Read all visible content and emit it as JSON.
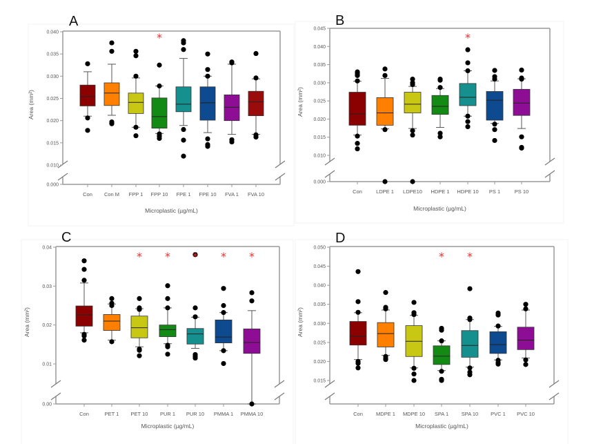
{
  "chart_data": [
    {
      "type": "box",
      "panel_label": "A",
      "xlabel": "Microplastic (µg/mL)",
      "ylabel": "Area (mm²)",
      "ylim": [
        0.0,
        0.04
      ],
      "axis_break": [
        0.0,
        0.01
      ],
      "yticks": [
        "0.000",
        "0.010",
        "0.015",
        "0.020",
        "0.025",
        "0.030",
        "0.035",
        "0.040"
      ],
      "categories": [
        "Con",
        "Con M",
        "FPP 1",
        "FPP 10",
        "FPE 1",
        "FPE 10",
        "FVA 1",
        "FVA 10"
      ],
      "colors": [
        "#8b0000",
        "#ff8000",
        "#c8c814",
        "#138a13",
        "#16908f",
        "#0d4a8f",
        "#8d0e94",
        "#9a0c0c"
      ],
      "boxes": [
        {
          "whisker_low": 0.021,
          "q1": 0.0233,
          "median": 0.0254,
          "q3": 0.028,
          "whisker_high": 0.031,
          "outliers": [
            0.0328,
            0.0178,
            0.0206
          ]
        },
        {
          "whisker_low": 0.0212,
          "q1": 0.0234,
          "median": 0.0262,
          "q3": 0.0285,
          "whisker_high": 0.0327,
          "outliers": [
            0.0375,
            0.0356,
            0.0197,
            0.0193
          ]
        },
        {
          "whisker_low": 0.0185,
          "q1": 0.0216,
          "median": 0.0241,
          "q3": 0.0262,
          "whisker_high": 0.0296,
          "outliers": [
            0.0356,
            0.0346,
            0.03,
            0.0185,
            0.0166
          ]
        },
        {
          "whisker_low": 0.0171,
          "q1": 0.0183,
          "median": 0.0209,
          "q3": 0.0251,
          "whisker_high": 0.0278,
          "outliers": [
            0.0325,
            0.0278,
            0.017,
            0.0165,
            0.016
          ]
        },
        {
          "whisker_low": 0.0189,
          "q1": 0.022,
          "median": 0.0237,
          "q3": 0.0276,
          "whisker_high": 0.034,
          "outliers": [
            0.038,
            0.0375,
            0.036,
            0.018,
            0.0156,
            0.012
          ]
        },
        {
          "whisker_low": 0.0173,
          "q1": 0.0201,
          "median": 0.024,
          "q3": 0.0276,
          "whisker_high": 0.03,
          "outliers": [
            0.035,
            0.0315,
            0.03,
            0.0159,
            0.0146,
            0.0142
          ]
        },
        {
          "whisker_low": 0.0169,
          "q1": 0.02,
          "median": 0.023,
          "q3": 0.0258,
          "whisker_high": 0.0327,
          "outliers": [
            0.0332,
            0.033,
            0.0157,
            0.0152
          ]
        },
        {
          "whisker_low": 0.0169,
          "q1": 0.0211,
          "median": 0.0242,
          "q3": 0.0266,
          "whisker_high": 0.0294,
          "outliers": [
            0.0351,
            0.0296,
            0.0168,
            0.0163
          ]
        }
      ],
      "significant": [
        "FPP 10"
      ]
    },
    {
      "type": "box",
      "panel_label": "B",
      "xlabel": "Microplastic (µg/mL)",
      "ylabel": "Area (mm²)",
      "ylim": [
        0.0,
        0.045
      ],
      "axis_break": [
        0.0,
        0.01
      ],
      "yticks": [
        "0.000",
        "0.010",
        "0.015",
        "0.020",
        "0.025",
        "0.030",
        "0.035",
        "0.040",
        "0.045"
      ],
      "categories": [
        "Con",
        "LDPE 1",
        "LDPE10",
        "HDPE 1",
        "HDPE 10",
        "PS 1",
        "PS 10"
      ],
      "colors": [
        "#8b0000",
        "#ff8000",
        "#c8c814",
        "#138a13",
        "#16908f",
        "#0d4a8f",
        "#8d0e94"
      ],
      "boxes": [
        {
          "whisker_low": 0.0156,
          "q1": 0.0183,
          "median": 0.0214,
          "q3": 0.0274,
          "whisker_high": 0.0304,
          "outliers": [
            0.033,
            0.0325,
            0.032,
            0.0305,
            0.0153,
            0.0133,
            0.0118
          ]
        },
        {
          "whisker_low": 0.0173,
          "q1": 0.0183,
          "median": 0.0217,
          "q3": 0.0259,
          "whisker_high": 0.0312,
          "outliers": [
            0.0338,
            0.032,
            0.0171,
            0.0091
          ]
        },
        {
          "whisker_low": 0.0174,
          "q1": 0.0217,
          "median": 0.0241,
          "q3": 0.0274,
          "whisker_high": 0.029,
          "outliers": [
            0.031,
            0.03,
            0.0295,
            0.0168,
            0.0156,
            0.0085
          ]
        },
        {
          "whisker_low": 0.0177,
          "q1": 0.0213,
          "median": 0.0235,
          "q3": 0.0265,
          "whisker_high": 0.0284,
          "outliers": [
            0.031,
            0.0307,
            0.0287,
            0.0161,
            0.0151
          ]
        },
        {
          "whisker_low": 0.0208,
          "q1": 0.0237,
          "median": 0.026,
          "q3": 0.0298,
          "whisker_high": 0.0333,
          "outliers": [
            0.0391,
            0.0355,
            0.0333,
            0.0208,
            0.0193,
            0.0179
          ]
        },
        {
          "whisker_low": 0.0188,
          "q1": 0.0197,
          "median": 0.0252,
          "q3": 0.0276,
          "whisker_high": 0.0305,
          "outliers": [
            0.0334,
            0.0317,
            0.031,
            0.0186,
            0.0171,
            0.0141
          ]
        },
        {
          "whisker_low": 0.0174,
          "q1": 0.021,
          "median": 0.0244,
          "q3": 0.0282,
          "whisker_high": 0.0311,
          "outliers": [
            0.0335,
            0.0313,
            0.031,
            0.0151,
            0.0122,
            0.012
          ]
        }
      ],
      "significant": [
        "HDPE 10"
      ]
    },
    {
      "type": "box",
      "panel_label": "C",
      "xlabel": "Microplastic (µg/mL)",
      "ylabel": "Area (mm²)",
      "ylim": [
        0.0,
        0.04
      ],
      "axis_break": [
        0.0,
        0.005
      ],
      "yticks": [
        "0.00",
        "0.01",
        "0.02",
        "0.03",
        "0.04"
      ],
      "categories": [
        "Con",
        "PET 1",
        "PET 10",
        "PUR 1",
        "PUR 10",
        "PMMA 1",
        "PMMA 10"
      ],
      "colors": [
        "#8b0000",
        "#ff8000",
        "#c8c814",
        "#138a13",
        "#16908f",
        "#0d4a8f",
        "#8d0e94"
      ],
      "boxes": [
        {
          "whisker_low": 0.018,
          "q1": 0.0197,
          "median": 0.0226,
          "q3": 0.0249,
          "whisker_high": 0.0308,
          "outliers": [
            0.0365,
            0.0343,
            0.0315,
            0.0176,
            0.0172,
            0.0161
          ]
        },
        {
          "whisker_low": 0.0161,
          "q1": 0.0186,
          "median": 0.021,
          "q3": 0.0227,
          "whisker_high": 0.0254,
          "outliers": [
            0.0268,
            0.0256,
            0.025,
            0.0157
          ]
        },
        {
          "whisker_low": 0.0144,
          "q1": 0.0167,
          "median": 0.0193,
          "q3": 0.0223,
          "whisker_high": 0.0242,
          "outliers": [
            0.0268,
            0.0244,
            0.024,
            0.0138,
            0.0135,
            0.0121
          ]
        },
        {
          "whisker_low": 0.0152,
          "q1": 0.017,
          "median": 0.0188,
          "q3": 0.02,
          "whisker_high": 0.0244,
          "outliers": [
            0.0301,
            0.0268,
            0.0244,
            0.0148,
            0.0144,
            0.0125
          ]
        },
        {
          "whisker_low": 0.014,
          "q1": 0.0151,
          "median": 0.0177,
          "q3": 0.0191,
          "whisker_high": 0.022,
          "outliers": [
            0.0381,
            0.0244,
            0.0221,
            0.0124,
            0.0119,
            0.0115
          ]
        },
        {
          "whisker_low": 0.0134,
          "q1": 0.0154,
          "median": 0.0169,
          "q3": 0.0213,
          "whisker_high": 0.0232,
          "outliers": [
            0.0294,
            0.025,
            0.0232,
            0.0134,
            0.0101
          ]
        },
        {
          "whisker_low": 0.0081,
          "q1": 0.0127,
          "median": 0.0155,
          "q3": 0.019,
          "whisker_high": 0.0237,
          "outliers": [
            0.0283,
            0.0262,
            0.0
          ]
        }
      ],
      "significant": [
        "PET 10",
        "PUR 1",
        "PUR 10",
        "PMMA 1",
        "PMMA 10"
      ]
    },
    {
      "type": "box",
      "panel_label": "D",
      "xlabel": "Microplastic (µg/mL)",
      "ylabel": "Area (mm²)",
      "ylim": [
        0.0,
        0.05
      ],
      "axis_break": [
        0.0,
        0.015
      ],
      "yticks": [
        "0.015",
        "0.020",
        "0.025",
        "0.030",
        "0.035",
        "0.040",
        "0.045",
        "0.050"
      ],
      "categories": [
        "Con",
        "MDPE 1",
        "MDPE 10",
        "SPA 1",
        "SPA 10",
        "PVC 1",
        "PVC 10"
      ],
      "colors": [
        "#8b0000",
        "#ff8000",
        "#c8c814",
        "#138a13",
        "#16908f",
        "#0d4a8f",
        "#8d0e94"
      ],
      "boxes": [
        {
          "whisker_low": 0.0205,
          "q1": 0.0243,
          "median": 0.0266,
          "q3": 0.0305,
          "whisker_high": 0.0328,
          "outliers": [
            0.0436,
            0.0357,
            0.0329,
            0.02,
            0.0195,
            0.0183
          ]
        },
        {
          "whisker_low": 0.0216,
          "q1": 0.0238,
          "median": 0.0273,
          "q3": 0.0302,
          "whisker_high": 0.0335,
          "outliers": [
            0.0381,
            0.0342,
            0.0338,
            0.0213,
            0.0208,
            0.0205
          ]
        },
        {
          "whisker_low": 0.0183,
          "q1": 0.0213,
          "median": 0.0253,
          "q3": 0.0294,
          "whisker_high": 0.0321,
          "outliers": [
            0.0355,
            0.0328,
            0.0323,
            0.0182,
            0.0167,
            0.015
          ]
        },
        {
          "whisker_low": 0.0176,
          "q1": 0.0192,
          "median": 0.0214,
          "q3": 0.0241,
          "whisker_high": 0.0254,
          "outliers": [
            0.0287,
            0.0282,
            0.0254,
            0.0174,
            0.0153,
            0.015
          ]
        },
        {
          "whisker_low": 0.0185,
          "q1": 0.0211,
          "median": 0.0242,
          "q3": 0.0281,
          "whisker_high": 0.031,
          "outliers": [
            0.0391,
            0.0314,
            0.031,
            0.0183,
            0.0172,
            0.0165
          ]
        },
        {
          "whisker_low": 0.0204,
          "q1": 0.0221,
          "median": 0.0244,
          "q3": 0.0278,
          "whisker_high": 0.0292,
          "outliers": [
            0.0327,
            0.0322,
            0.0293,
            0.0203,
            0.0197,
            0.0193
          ]
        },
        {
          "whisker_low": 0.0209,
          "q1": 0.0231,
          "median": 0.0256,
          "q3": 0.029,
          "whisker_high": 0.0335,
          "outliers": [
            0.035,
            0.0338,
            0.0204,
            0.0192
          ]
        }
      ],
      "significant": [
        "SPA 1",
        "SPA 10"
      ]
    }
  ]
}
